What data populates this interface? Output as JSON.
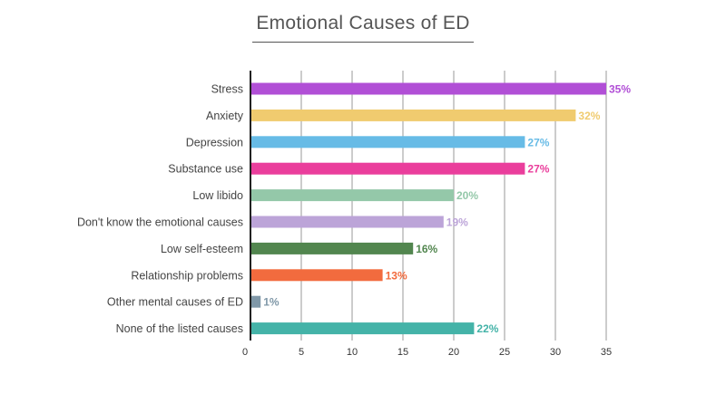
{
  "chart_data": {
    "type": "bar",
    "orientation": "horizontal",
    "title": "Emotional Causes of ED",
    "xlabel": "",
    "ylabel": "",
    "xlim": [
      0,
      35
    ],
    "ticks": [
      0,
      5,
      10,
      15,
      20,
      25,
      30,
      35
    ],
    "grid": true,
    "categories": [
      "Stress",
      "Anxiety",
      "Depression",
      "Substance use",
      "Low libido",
      "Don't know the emotional causes",
      "Low self-esteem",
      "Relationship problems",
      "Other mental causes of ED",
      "None of the listed causes"
    ],
    "values": [
      35,
      32,
      27,
      27,
      20,
      19,
      16,
      13,
      1,
      22
    ],
    "labels": [
      "35%",
      "32%",
      "27%",
      "27%",
      "20%",
      "19%",
      "16%",
      "13%",
      "1%",
      "22%"
    ],
    "colors": [
      "#b14fd6",
      "#f0cb6f",
      "#67bbe6",
      "#ea3e9c",
      "#94c8a9",
      "#bca4d8",
      "#52864f",
      "#f26b3e",
      "#8098a8",
      "#44b3a8"
    ]
  }
}
